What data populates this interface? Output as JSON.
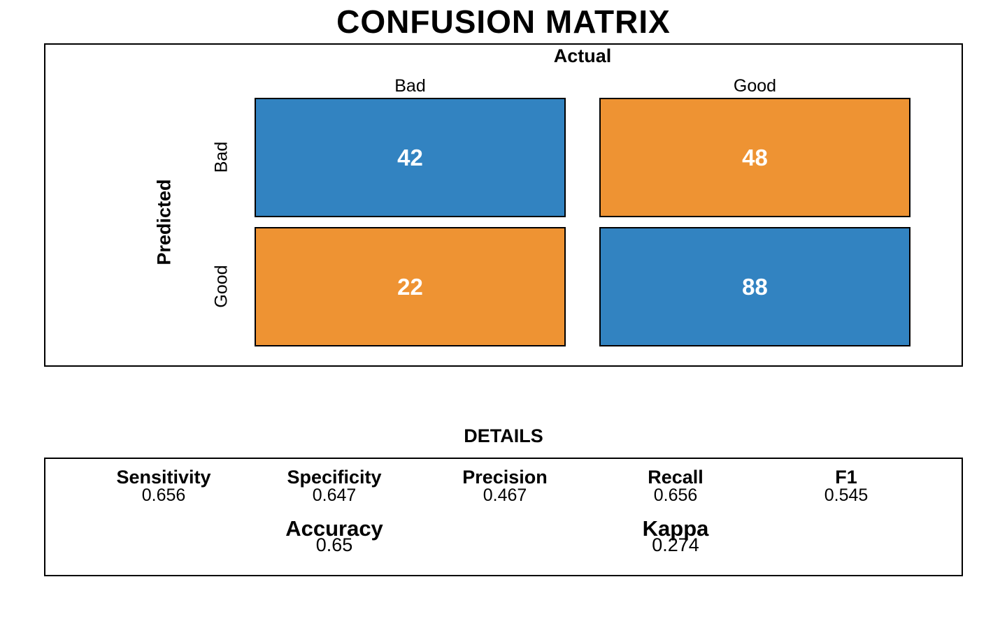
{
  "title": "CONFUSION MATRIX",
  "colors": {
    "match": "#3283c1",
    "mismatch": "#ee9333",
    "cell_text": "#ffffff",
    "border": "#000000",
    "background": "#ffffff"
  },
  "chart_data": {
    "type": "heatmap",
    "title": "CONFUSION MATRIX",
    "x_axis_label": "Actual",
    "y_axis_label": "Predicted",
    "columns": [
      "Bad",
      "Good"
    ],
    "rows": [
      "Bad",
      "Good"
    ],
    "matrix": [
      [
        42,
        48
      ],
      [
        22,
        88
      ]
    ],
    "cells": [
      {
        "predicted": "Bad",
        "actual": "Bad",
        "value": "42",
        "color": "#3283c1"
      },
      {
        "predicted": "Bad",
        "actual": "Good",
        "value": "48",
        "color": "#ee9333"
      },
      {
        "predicted": "Good",
        "actual": "Bad",
        "value": "22",
        "color": "#ee9333"
      },
      {
        "predicted": "Good",
        "actual": "Good",
        "value": "88",
        "color": "#3283c1"
      }
    ],
    "legend_position": "none",
    "grid": false,
    "metrics": {
      "Sensitivity": 0.656,
      "Specificity": 0.647,
      "Precision": 0.467,
      "Recall": 0.656,
      "F1": 0.545,
      "Accuracy": 0.65,
      "Kappa": 0.274
    }
  },
  "details": {
    "title": "DETAILS",
    "metrics": [
      {
        "label": "Sensitivity",
        "value": "0.656"
      },
      {
        "label": "Specificity",
        "value": "0.647"
      },
      {
        "label": "Precision",
        "value": "0.467"
      },
      {
        "label": "Recall",
        "value": "0.656"
      },
      {
        "label": "F1",
        "value": "0.545"
      }
    ],
    "summary": [
      {
        "label": "Accuracy",
        "value": "0.65"
      },
      {
        "label": "Kappa",
        "value": "0.274"
      }
    ]
  }
}
